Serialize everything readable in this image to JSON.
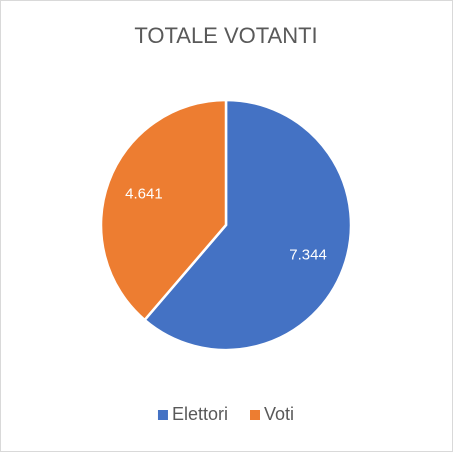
{
  "chart_data": {
    "type": "pie",
    "title": "TOTALE VOTANTI",
    "categories": [
      "Elettori",
      "Voti"
    ],
    "values": [
      7344,
      4641
    ],
    "value_labels": [
      "7.344",
      "4.641"
    ],
    "colors": [
      "#4472c4",
      "#ed7d31"
    ],
    "legend": "bottom"
  }
}
